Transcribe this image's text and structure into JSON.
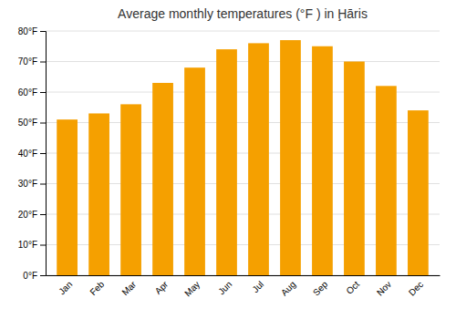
{
  "chart_data": {
    "type": "bar",
    "title": "Average monthly temperatures (°F ) in Ḩāris",
    "categories": [
      "Jan",
      "Feb",
      "Mar",
      "Apr",
      "May",
      "Jun",
      "Jul",
      "Aug",
      "Sep",
      "Oct",
      "Nov",
      "Dec"
    ],
    "values": [
      51,
      53,
      56,
      63,
      68,
      74,
      76,
      77,
      75,
      70,
      62,
      54
    ],
    "color": "#F5A000",
    "ylim": [
      0,
      80
    ],
    "yticks": [
      {
        "value": 0,
        "label": "0°F"
      },
      {
        "value": 10,
        "label": "10°F"
      },
      {
        "value": 20,
        "label": "20°F"
      },
      {
        "value": 30,
        "label": "30°F"
      },
      {
        "value": 40,
        "label": "40°F"
      },
      {
        "value": 50,
        "label": "50°F"
      },
      {
        "value": 60,
        "label": "60°F"
      },
      {
        "value": 70,
        "label": "70°F"
      },
      {
        "value": 80,
        "label": "80°F"
      }
    ],
    "grid": true
  }
}
